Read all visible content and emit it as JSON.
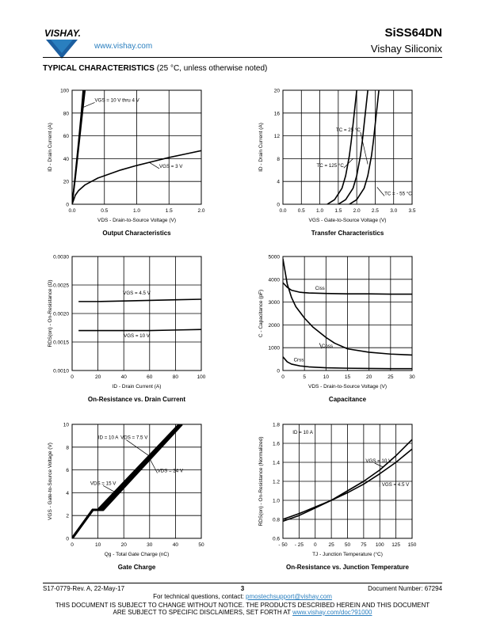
{
  "header": {
    "logo_text": "VISHAY.",
    "url": "www.vishay.com",
    "part_number": "SiSS64DN",
    "company": "Vishay Siliconix"
  },
  "section": {
    "title": "TYPICAL CHARACTERISTICS",
    "condition": "(25 °C, unless otherwise noted)"
  },
  "colors": {
    "link": "#2a7fbf",
    "line": "#000000"
  },
  "chart_data": [
    {
      "type": "line",
      "title": "Output Characteristics",
      "xlabel": "VDS - Drain-to-Source Voltage (V)",
      "ylabel": "ID - Drain Current (A)",
      "xlim": [
        0,
        2.0
      ],
      "ylim": [
        0,
        100
      ],
      "xticks": [
        "0.0",
        "0.5",
        "1.0",
        "1.5",
        "2.0"
      ],
      "yticks": [
        "0",
        "20",
        "40",
        "60",
        "80",
        "100"
      ],
      "grid": true,
      "series": [
        {
          "name": "VGS = 10 V thru 4 V",
          "x": [
            0,
            0.05,
            0.1,
            0.15,
            0.2
          ],
          "y": [
            0,
            23,
            49,
            75,
            100
          ]
        },
        {
          "name": "VGS = 10 V thru 4 V",
          "x": [
            0,
            0.05,
            0.1,
            0.15,
            0.19
          ],
          "y": [
            0,
            25,
            51,
            78,
            100
          ]
        },
        {
          "name": "VGS = 10 V thru 4 V",
          "x": [
            0,
            0.05,
            0.1,
            0.14,
            0.17
          ],
          "y": [
            0,
            27,
            55,
            79,
            100
          ]
        },
        {
          "name": "VGS = 3 V",
          "x": [
            0,
            0.05,
            0.1,
            0.2,
            0.3,
            0.4,
            0.5,
            0.75,
            1.0,
            1.25,
            1.5,
            1.75,
            2.0
          ],
          "y": [
            0,
            8,
            12,
            17,
            20,
            23,
            25,
            30,
            34,
            37.5,
            41,
            44,
            47
          ]
        }
      ],
      "annotations": [
        "VGS = 10 V thru 4 V",
        "VGS = 3 V"
      ]
    },
    {
      "type": "line",
      "title": "Transfer Characteristics",
      "xlabel": "VGS - Gate-to-Source Voltage (V)",
      "ylabel": "ID - Drain Current (A)",
      "xlim": [
        0,
        3.5
      ],
      "ylim": [
        0,
        20
      ],
      "xticks": [
        "0.0",
        "0.5",
        "1.0",
        "1.5",
        "2.0",
        "2.5",
        "3.0",
        "3.5"
      ],
      "yticks": [
        "0",
        "4",
        "8",
        "12",
        "16",
        "20"
      ],
      "grid": true,
      "series": [
        {
          "name": "TC = 125 °C",
          "x": [
            1.2,
            1.4,
            1.6,
            1.7,
            1.8,
            1.85,
            1.9,
            1.95,
            2.0
          ],
          "y": [
            0,
            0.8,
            2.8,
            5,
            8.5,
            11,
            14,
            17,
            20
          ]
        },
        {
          "name": "TC = 25 °C",
          "x": [
            1.5,
            1.7,
            1.9,
            2.0,
            2.1,
            2.15,
            2.2,
            2.25,
            2.3
          ],
          "y": [
            0,
            0.8,
            2.8,
            5,
            8.5,
            11,
            14,
            17,
            20
          ]
        },
        {
          "name": "TC = - 55 °C",
          "x": [
            1.8,
            2.0,
            2.2,
            2.3,
            2.4,
            2.45,
            2.5,
            2.55,
            2.6
          ],
          "y": [
            0,
            0.8,
            2.8,
            5,
            8.5,
            11,
            14,
            17,
            20
          ]
        }
      ],
      "annotations": [
        "TC = 25 °C",
        "TC = 125 °C",
        "TC = - 55 °C"
      ]
    },
    {
      "type": "line",
      "title": "On-Resistance vs. Drain Current",
      "xlabel": "ID - Drain Current (A)",
      "ylabel": "RDS(on) - On-Resistance (Ω)",
      "xlim": [
        0,
        100
      ],
      "ylim": [
        0.001,
        0.003
      ],
      "xticks": [
        "0",
        "20",
        "40",
        "60",
        "80",
        "100"
      ],
      "yticks": [
        "0.0010",
        "0.0015",
        "0.0020",
        "0.0025",
        "0.0030"
      ],
      "grid": true,
      "series": [
        {
          "name": "VGS = 4.5 V",
          "x": [
            5,
            20,
            40,
            60,
            80,
            100
          ],
          "y": [
            0.00221,
            0.00221,
            0.00222,
            0.00223,
            0.00224,
            0.00225
          ]
        },
        {
          "name": "VGS = 10 V",
          "x": [
            5,
            20,
            40,
            60,
            80,
            100
          ],
          "y": [
            0.0017,
            0.0017,
            0.0017,
            0.0017,
            0.00171,
            0.00172
          ]
        }
      ],
      "annotations": [
        "VGS = 4.5 V",
        "VGS = 10 V"
      ]
    },
    {
      "type": "line",
      "title": "Capacitance",
      "xlabel": "VDS - Drain-to-Source Voltage (V)",
      "ylabel": "C - Capacitance (pF)",
      "xlim": [
        0,
        30
      ],
      "ylim": [
        0,
        5000
      ],
      "xticks": [
        "0",
        "5",
        "10",
        "15",
        "20",
        "25",
        "30"
      ],
      "yticks": [
        "0",
        "1000",
        "2000",
        "3000",
        "4000",
        "5000"
      ],
      "grid": true,
      "series": [
        {
          "name": "Ciss",
          "x": [
            0,
            1,
            2,
            4,
            6,
            10,
            15,
            20,
            25,
            30
          ],
          "y": [
            3850,
            3650,
            3520,
            3430,
            3400,
            3380,
            3360,
            3360,
            3350,
            3350
          ]
        },
        {
          "name": "Coss",
          "x": [
            0,
            1,
            2,
            3,
            5,
            7,
            10,
            12,
            15,
            20,
            25,
            30
          ],
          "y": [
            4900,
            3800,
            3200,
            2800,
            2300,
            1900,
            1450,
            1200,
            950,
            800,
            720,
            680
          ]
        },
        {
          "name": "Crss",
          "x": [
            0,
            1,
            2,
            4,
            6,
            10,
            15,
            20,
            25,
            30
          ],
          "y": [
            600,
            380,
            280,
            200,
            160,
            120,
            100,
            90,
            80,
            80
          ]
        }
      ],
      "annotations": [
        "Ciss",
        "Coss",
        "Crss"
      ]
    },
    {
      "type": "line",
      "title": "Gate Charge",
      "xlabel": "Qg - Total Gate Charge (nC)",
      "ylabel": "VGS - Gate-to-Source Voltage (V)",
      "xlim": [
        0,
        50
      ],
      "ylim": [
        0,
        10
      ],
      "xticks": [
        "0",
        "10",
        "20",
        "30",
        "40",
        "50"
      ],
      "yticks": [
        "0",
        "2",
        "4",
        "6",
        "8",
        "10"
      ],
      "grid": true,
      "series": [
        {
          "name": "VDS = 15 V",
          "x": [
            0,
            8,
            11,
            42
          ],
          "y": [
            0,
            2.5,
            2.5,
            10
          ]
        },
        {
          "name": "VDS = 7.5 V",
          "x": [
            0,
            8,
            10,
            41.5
          ],
          "y": [
            0,
            2.5,
            2.5,
            10
          ]
        },
        {
          "name": "VDS = 24 V",
          "x": [
            0,
            8,
            12,
            42.5
          ],
          "y": [
            0,
            2.5,
            2.5,
            10
          ]
        }
      ],
      "annotations": [
        "ID = 10 A",
        "VDS = 7.5 V",
        "VDS = 15 V",
        "VDS = 24 V"
      ]
    },
    {
      "type": "line",
      "title": "On-Resistance vs. Junction Temperature",
      "xlabel": "TJ - Junction Temperature (°C)",
      "ylabel": "RDS(on) - On-Resistance (Normalized)",
      "xlim": [
        -50,
        150
      ],
      "ylim": [
        0.6,
        1.8
      ],
      "xticks": [
        "- 50",
        "- 25",
        "0",
        "25",
        "50",
        "75",
        "100",
        "125",
        "150"
      ],
      "yticks": [
        "0.6",
        "0.8",
        "1.0",
        "1.2",
        "1.4",
        "1.6",
        "1.8"
      ],
      "grid": true,
      "series": [
        {
          "name": "VGS = 10 V",
          "x": [
            -50,
            -25,
            0,
            25,
            50,
            75,
            100,
            125,
            150
          ],
          "y": [
            0.78,
            0.84,
            0.92,
            1.0,
            1.1,
            1.2,
            1.32,
            1.47,
            1.64
          ]
        },
        {
          "name": "VGS = 4.5 V",
          "x": [
            -50,
            -25,
            0,
            25,
            50,
            75,
            100,
            125,
            150
          ],
          "y": [
            0.8,
            0.86,
            0.93,
            1.0,
            1.08,
            1.17,
            1.28,
            1.4,
            1.54
          ]
        }
      ],
      "annotations": [
        "ID = 10 A",
        "VGS = 10 V",
        "VGS = 4.5 V"
      ]
    }
  ],
  "footer": {
    "doc_rev": "S17-0779-Rev. A, 22-May-17",
    "page": "3",
    "doc_number": "Document Number: 67294",
    "questions": "For technical questions, contact:",
    "email": "pmostechsupport@vishay.com",
    "notice_1": "THIS DOCUMENT IS SUBJECT TO CHANGE WITHOUT NOTICE. THE PRODUCTS DESCRIBED HEREIN AND THIS DOCUMENT",
    "notice_2": "ARE SUBJECT TO SPECIFIC DISCLAIMERS, SET FORTH AT",
    "disclaimer_url": "www.vishay.com/doc?91000"
  }
}
